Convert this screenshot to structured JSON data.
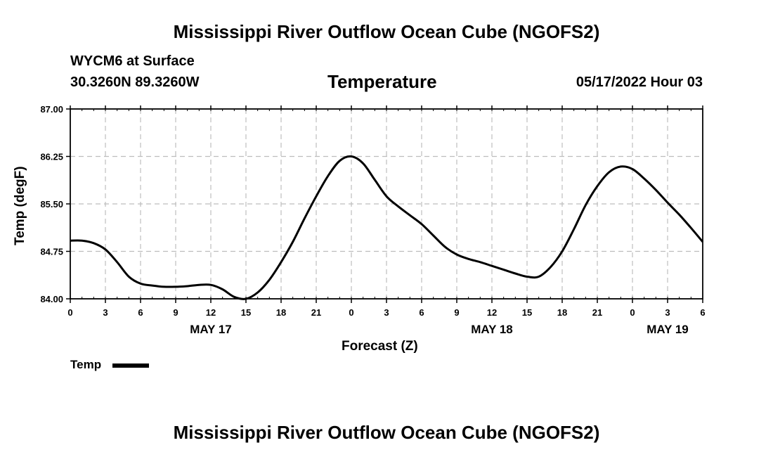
{
  "page": {
    "title_top": "Mississippi River Outflow Ocean Cube (NGOFS2)",
    "title_bottom": "Mississippi River Outflow Ocean Cube (NGOFS2)",
    "station": "WYCM6 at Surface",
    "coords": "30.3260N  89.3260W",
    "datetime": "05/17/2022 Hour 03"
  },
  "legend": {
    "label": "Temp",
    "color": "#000000"
  },
  "chart_data": {
    "type": "line",
    "title": "Temperature",
    "xlabel": "Forecast (Z)",
    "ylabel": "Temp (degF)",
    "ylim": [
      84.0,
      87.0
    ],
    "xlim": [
      0,
      54
    ],
    "y_ticks": [
      "84.00",
      "84.75",
      "85.50",
      "86.25",
      "87.00"
    ],
    "y_tick_values": [
      84.0,
      84.75,
      85.5,
      86.25,
      87.0
    ],
    "x_ticks": [
      "0",
      "3",
      "6",
      "9",
      "12",
      "15",
      "18",
      "21",
      "0",
      "3",
      "6",
      "9",
      "12",
      "15",
      "18",
      "21",
      "0",
      "3",
      "6"
    ],
    "date_labels": [
      {
        "label": "MAY 17",
        "hour": 12
      },
      {
        "label": "MAY 18",
        "hour": 36
      },
      {
        "label": "MAY 19",
        "hour": 51
      }
    ],
    "grid": true,
    "series": [
      {
        "name": "Temp",
        "x": [
          0,
          1,
          2,
          3,
          4,
          5,
          6,
          7,
          8,
          9,
          10,
          11,
          12,
          13,
          14,
          15,
          16,
          17,
          18,
          19,
          20,
          21,
          22,
          23,
          24,
          25,
          26,
          27,
          28,
          29,
          30,
          31,
          32,
          33,
          34,
          35,
          36,
          37,
          38,
          39,
          40,
          41,
          42,
          43,
          44,
          45,
          46,
          47,
          48,
          49,
          50,
          51,
          52,
          53,
          54
        ],
        "values": [
          84.92,
          84.92,
          84.88,
          84.78,
          84.58,
          84.35,
          84.24,
          84.21,
          84.19,
          84.19,
          84.2,
          84.22,
          84.22,
          84.15,
          84.03,
          84.0,
          84.1,
          84.3,
          84.58,
          84.9,
          85.27,
          85.62,
          85.94,
          86.18,
          86.25,
          86.14,
          85.88,
          85.62,
          85.46,
          85.32,
          85.18,
          85.0,
          84.82,
          84.7,
          84.63,
          84.58,
          84.52,
          84.46,
          84.4,
          84.35,
          84.35,
          84.5,
          84.75,
          85.1,
          85.48,
          85.78,
          86.0,
          86.09,
          86.05,
          85.9,
          85.72,
          85.52,
          85.33,
          85.12,
          84.9
        ]
      }
    ]
  }
}
